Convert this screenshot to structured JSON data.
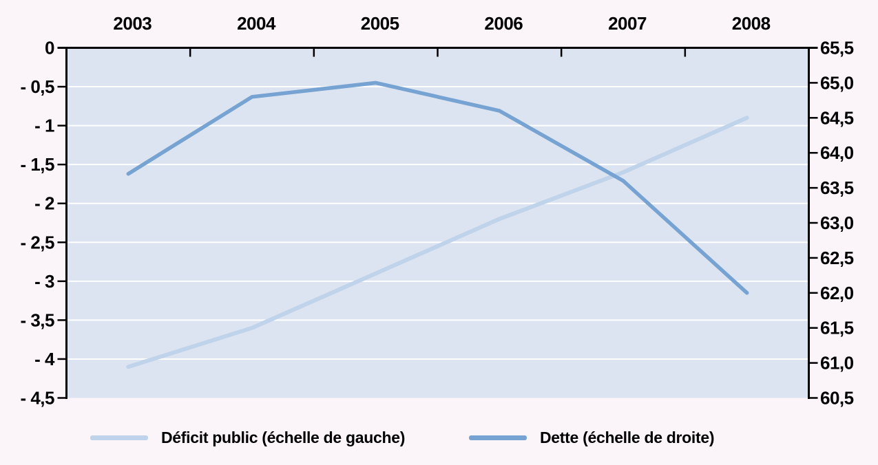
{
  "page": {
    "background": "#fbf4f9"
  },
  "chart_data": {
    "type": "line",
    "title": "",
    "categories": [
      "2003",
      "2004",
      "2005",
      "2006",
      "2007",
      "2008"
    ],
    "series": [
      {
        "name": "Déficit public (échelle de gauche)",
        "axis": "left",
        "color": "#bfd3ea",
        "values": [
          -4.1,
          -3.6,
          -2.9,
          -2.2,
          -1.6,
          -0.9
        ]
      },
      {
        "name": "Dette (échelle de droite)",
        "axis": "right",
        "color": "#76a3d2",
        "values": [
          63.7,
          64.8,
          65.0,
          64.6,
          63.6,
          62.0
        ]
      }
    ],
    "left_axis": {
      "max": 0,
      "min": -4.5,
      "step": 0.5,
      "tick_labels": [
        "0",
        "- 0,5",
        "- 1",
        "- 1,5",
        "- 2",
        "- 2,5",
        "- 3",
        "- 3,5",
        "- 4",
        "- 4,5"
      ]
    },
    "right_axis": {
      "max": 65.5,
      "min": 60.5,
      "step": 0.5,
      "tick_labels": [
        "65,5",
        "65,0",
        "64,5",
        "64,0",
        "63,5",
        "63,0",
        "62,5",
        "62,0",
        "61,5",
        "61,0",
        "60,5"
      ]
    },
    "x_tick_positions": "category boundaries, labels centered per category",
    "grid": {
      "show": true,
      "color": "#ffffff",
      "follows": "left-axis-steps"
    },
    "plot_bg": "#dde4f1",
    "axis_color": "#000000",
    "legend_position": "bottom"
  }
}
